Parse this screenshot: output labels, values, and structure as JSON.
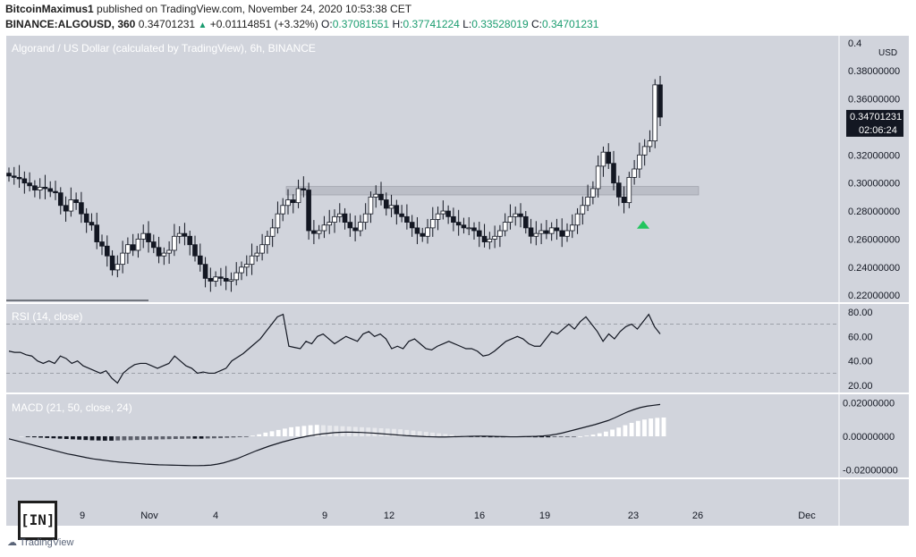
{
  "header": {
    "publisher": "BitcoinMaximus1",
    "published_text": "published on TradingView.com, November 24, 2020 10:53:38 CET",
    "symbol": "BINANCE:ALGOUSD, 360",
    "last": "0.34701231",
    "change": "+0.01114851 (+3.32%)",
    "o_label": "O:",
    "o_value": "0.37081551",
    "h_label": "H:",
    "h_value": "0.37741224",
    "l_label": "L:",
    "l_value": "0.33528019",
    "c_label": "C:",
    "c_value": "0.34701231"
  },
  "watermark": {
    "text": "[IN]",
    "tv_logo_text": "TradingView"
  },
  "colors": {
    "background": "#d1d4dc",
    "up_candle": "#ffffff",
    "down_candle": "#131722",
    "resistance_box": "#b2b5be",
    "signal_arrow": "#22c55e",
    "price_tag": "#131722"
  },
  "chart_data": [
    {
      "type": "candlestick",
      "title": "Algorand / US Dollar (calculated by TradingView), 6h, BINANCE",
      "y_axis_unit": "USD",
      "ylim": [
        0.215,
        0.405
      ],
      "y_ticks": [
        0.22,
        0.24,
        0.26,
        0.28,
        0.3,
        0.32,
        0.36,
        0.38
      ],
      "y_tick_labels": [
        "0.22000000",
        "0.24000000",
        "0.26000000",
        "0.28000000",
        "0.30000000",
        "0.32000000",
        "0.36000000",
        "0.38000000"
      ],
      "y_top_partial_label": "0.4",
      "price_tag": {
        "value": "0.34701231",
        "countdown": "02:06:24"
      },
      "x_tick_labels": [
        "9",
        "Nov",
        "4",
        "9",
        "12",
        "16",
        "19",
        "23",
        "26",
        "Dec"
      ],
      "resistance_zone": [
        0.2915,
        0.2975
      ],
      "signal_arrow_price": 0.27,
      "close_prices": [
        0.305,
        0.304,
        0.303,
        0.3,
        0.298,
        0.295,
        0.297,
        0.296,
        0.294,
        0.293,
        0.284,
        0.28,
        0.288,
        0.286,
        0.278,
        0.272,
        0.27,
        0.258,
        0.255,
        0.248,
        0.238,
        0.242,
        0.25,
        0.256,
        0.252,
        0.26,
        0.264,
        0.258,
        0.254,
        0.248,
        0.25,
        0.252,
        0.262,
        0.264,
        0.262,
        0.256,
        0.248,
        0.242,
        0.232,
        0.23,
        0.233,
        0.232,
        0.23,
        0.231,
        0.236,
        0.24,
        0.242,
        0.248,
        0.25,
        0.256,
        0.262,
        0.268,
        0.278,
        0.284,
        0.288,
        0.286,
        0.296,
        0.295,
        0.266,
        0.264,
        0.266,
        0.27,
        0.272,
        0.276,
        0.278,
        0.272,
        0.268,
        0.266,
        0.272,
        0.278,
        0.29,
        0.292,
        0.288,
        0.282,
        0.284,
        0.278,
        0.276,
        0.272,
        0.268,
        0.264,
        0.262,
        0.268,
        0.274,
        0.278,
        0.28,
        0.276,
        0.272,
        0.27,
        0.268,
        0.268,
        0.266,
        0.262,
        0.258,
        0.26,
        0.262,
        0.266,
        0.272,
        0.276,
        0.278,
        0.276,
        0.268,
        0.262,
        0.264,
        0.266,
        0.264,
        0.268,
        0.266,
        0.262,
        0.266,
        0.27,
        0.278,
        0.284,
        0.29,
        0.296,
        0.312,
        0.322,
        0.314,
        0.3,
        0.29,
        0.286,
        0.304,
        0.31,
        0.32,
        0.326,
        0.33,
        0.37,
        0.347
      ],
      "volume_note": ""
    },
    {
      "type": "line",
      "title": "RSI (14, close)",
      "ylim": [
        15,
        85
      ],
      "y_ticks": [
        20,
        40,
        60,
        80
      ],
      "y_tick_labels": [
        "20.00",
        "40.00",
        "60.00",
        "80.00"
      ],
      "reference_lines": [
        30,
        70
      ],
      "values": [
        48,
        47,
        47,
        45,
        44,
        40,
        38,
        40,
        38,
        44,
        42,
        38,
        40,
        36,
        34,
        32,
        30,
        32,
        26,
        22,
        30,
        34,
        37,
        38,
        38,
        36,
        34,
        36,
        38,
        44,
        40,
        36,
        34,
        30,
        31,
        30,
        30,
        32,
        34,
        40,
        43,
        46,
        50,
        54,
        58,
        64,
        70,
        76,
        78,
        52,
        51,
        50,
        56,
        54,
        60,
        62,
        58,
        54,
        57,
        60,
        58,
        56,
        62,
        64,
        60,
        62,
        58,
        50,
        52,
        50,
        56,
        58,
        54,
        50,
        49,
        52,
        54,
        56,
        54,
        52,
        50,
        50,
        48,
        44,
        45,
        48,
        52,
        56,
        58,
        60,
        58,
        54,
        52,
        52,
        58,
        64,
        62,
        66,
        70,
        66,
        72,
        76,
        70,
        64,
        56,
        62,
        58,
        64,
        68,
        70,
        66,
        72,
        78,
        68,
        62
      ],
      "line_color": "#131722"
    },
    {
      "type": "bar+line",
      "title": "MACD (21, 50, close, 24)",
      "ylim": [
        -0.024,
        0.024
      ],
      "y_ticks": [
        -0.02,
        0.0,
        0.02
      ],
      "y_tick_labels": [
        "-0.02000000",
        "0.00000000",
        "0.02000000"
      ],
      "histogram": [
        0.0,
        -0.0003,
        -0.0006,
        -0.0008,
        -0.001,
        -0.0012,
        -0.0014,
        -0.0016,
        -0.0018,
        -0.002,
        -0.0022,
        -0.0024,
        -0.0025,
        -0.0026,
        -0.0026,
        -0.0025,
        -0.0024,
        -0.0023,
        -0.0022,
        -0.0021,
        -0.002,
        -0.0019,
        -0.0018,
        -0.0017,
        -0.0016,
        -0.0015,
        -0.0014,
        -0.0014,
        -0.0014,
        -0.0013,
        -0.0012,
        -0.0011,
        -0.0009,
        -0.0007,
        -0.0005,
        -0.0003,
        0.0004,
        0.0012,
        0.0022,
        0.003,
        0.0038,
        0.0046,
        0.0054,
        0.0058,
        0.0062,
        0.0066,
        0.0068,
        0.0066,
        0.0064,
        0.0062,
        0.006,
        0.0058,
        0.0056,
        0.0054,
        0.0052,
        0.005,
        0.0048,
        0.0046,
        0.0044,
        0.0042,
        0.0038,
        0.0034,
        0.003,
        0.0026,
        0.0022,
        0.0018,
        0.0014,
        0.001,
        0.0006,
        0.0002,
        -0.0002,
        -0.0004,
        -0.0005,
        -0.0006,
        -0.0006,
        -0.0006,
        -0.0005,
        -0.0004,
        -0.0004,
        -0.0005,
        -0.0006,
        -0.0006,
        -0.0006,
        -0.0005,
        -0.0004,
        -0.0003,
        -0.0002,
        0.0,
        0.0004,
        0.001,
        0.0018,
        0.0028,
        0.004,
        0.0052,
        0.0066,
        0.008,
        0.0092,
        0.01,
        0.0106,
        0.011,
        0.0112
      ],
      "macd_line": [
        -0.0015,
        -0.0025,
        -0.0035,
        -0.0045,
        -0.0055,
        -0.0065,
        -0.0075,
        -0.0085,
        -0.0095,
        -0.0105,
        -0.0112,
        -0.012,
        -0.0128,
        -0.0135,
        -0.014,
        -0.0145,
        -0.015,
        -0.0154,
        -0.0157,
        -0.016,
        -0.0163,
        -0.0166,
        -0.0168,
        -0.017,
        -0.0171,
        -0.0172,
        -0.0173,
        -0.0174,
        -0.0175,
        -0.0175,
        -0.0174,
        -0.0172,
        -0.0166,
        -0.0158,
        -0.0146,
        -0.0134,
        -0.0118,
        -0.0102,
        -0.0086,
        -0.0072,
        -0.0058,
        -0.0046,
        -0.0034,
        -0.0024,
        -0.0014,
        -0.0006,
        0.0002,
        0.0008,
        0.0014,
        0.0018,
        0.0022,
        0.0024,
        0.0025,
        0.0024,
        0.0023,
        0.0021,
        0.0019,
        0.0016,
        0.0013,
        0.001,
        0.0007,
        0.0004,
        0.0002,
        0.0,
        -0.0002,
        -0.0003,
        -0.0004,
        -0.0004,
        -0.0003,
        -0.0002,
        -0.0001,
        0.0,
        0.0001,
        0.0001,
        0.0,
        -0.0001,
        -0.0002,
        -0.0003,
        -0.0003,
        -0.0002,
        -0.0001,
        0.0,
        0.0002,
        0.0006,
        0.0012,
        0.002,
        0.003,
        0.004,
        0.005,
        0.006,
        0.007,
        0.0082,
        0.0094,
        0.011,
        0.0128,
        0.0146,
        0.016,
        0.0172,
        0.018,
        0.0185,
        0.019
      ]
    }
  ]
}
